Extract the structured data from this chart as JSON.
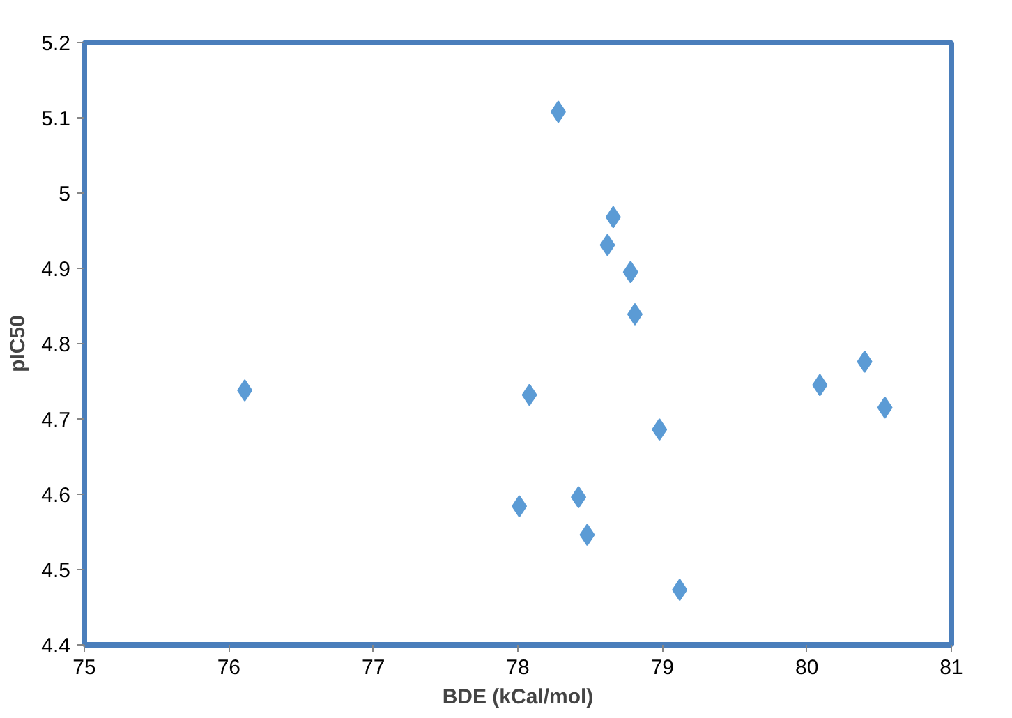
{
  "chart_data": {
    "type": "scatter",
    "xlabel": "BDE (kCal/mol)",
    "ylabel": "pIC50",
    "x": [
      78.28,
      78.66,
      78.62,
      78.78,
      78.81,
      80.09,
      80.4,
      80.54,
      76.11,
      78.08,
      78.98,
      78.42,
      78.01,
      78.48,
      79.12
    ],
    "series": [
      {
        "color": "#5b9bd5",
        "values": [
          5.108,
          4.968,
          4.931,
          4.895,
          4.839,
          4.745,
          4.776,
          4.715,
          4.738,
          4.732,
          4.686,
          4.596,
          4.584,
          4.546,
          4.473
        ]
      }
    ],
    "xlim": [
      75,
      81
    ],
    "xticks": [
      75,
      76,
      77,
      78,
      79,
      80,
      81
    ],
    "ylim": [
      4.4,
      5.2
    ],
    "yticks": [
      4.4,
      4.5,
      4.6,
      4.7,
      4.8,
      4.9,
      5,
      5.1,
      5.2
    ],
    "grid": false,
    "marker": "diamond"
  }
}
